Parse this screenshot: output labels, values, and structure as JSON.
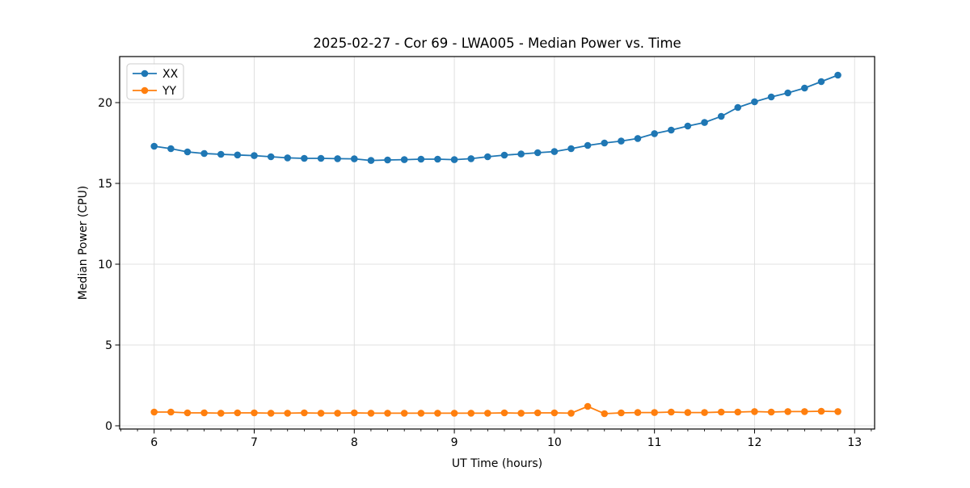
{
  "chart_data": {
    "type": "line",
    "title": "2025-02-27 - Cor 69 - LWA005 - Median Power vs. Time",
    "xlabel": "UT Time (hours)",
    "ylabel": "Median Power (CPU)",
    "xlim": [
      5.655,
      13.2
    ],
    "ylim": [
      -0.2,
      22.85
    ],
    "xticks": [
      6,
      7,
      8,
      9,
      10,
      11,
      12,
      13
    ],
    "yticks": [
      0,
      5,
      10,
      15,
      20
    ],
    "x_minor_step": 0.1666667,
    "grid": true,
    "grid_color": "#e0e0e0",
    "spine_color": "#000000",
    "background_color": "#ffffff",
    "legend": {
      "position": "upper left",
      "labels": [
        "XX",
        "YY"
      ]
    },
    "x": [
      6.0,
      6.167,
      6.333,
      6.5,
      6.667,
      6.833,
      7.0,
      7.167,
      7.333,
      7.5,
      7.667,
      7.833,
      8.0,
      8.167,
      8.333,
      8.5,
      8.667,
      8.833,
      9.0,
      9.167,
      9.333,
      9.5,
      9.667,
      9.833,
      10.0,
      10.167,
      10.333,
      10.5,
      10.667,
      10.833,
      11.0,
      11.167,
      11.333,
      11.5,
      11.667,
      11.833,
      12.0,
      12.167,
      12.333,
      12.5,
      12.667,
      12.833
    ],
    "series": [
      {
        "name": "XX",
        "color": "#1f77b4",
        "values": [
          17.3,
          17.15,
          16.95,
          16.85,
          16.8,
          16.76,
          16.72,
          16.65,
          16.58,
          16.55,
          16.55,
          16.53,
          16.52,
          16.42,
          16.45,
          16.47,
          16.5,
          16.5,
          16.47,
          16.53,
          16.65,
          16.75,
          16.82,
          16.9,
          16.97,
          17.15,
          17.35,
          17.5,
          17.62,
          17.78,
          18.08,
          18.3,
          18.55,
          18.77,
          19.15,
          19.7,
          20.05,
          20.35,
          20.6,
          20.9,
          21.3,
          21.7
        ]
      },
      {
        "name": "YY",
        "color": "#ff7f0e",
        "values": [
          0.85,
          0.85,
          0.8,
          0.8,
          0.78,
          0.8,
          0.8,
          0.78,
          0.78,
          0.8,
          0.78,
          0.78,
          0.8,
          0.78,
          0.78,
          0.78,
          0.78,
          0.78,
          0.78,
          0.78,
          0.78,
          0.8,
          0.78,
          0.8,
          0.8,
          0.78,
          1.2,
          0.75,
          0.8,
          0.82,
          0.82,
          0.85,
          0.82,
          0.82,
          0.85,
          0.85,
          0.88,
          0.85,
          0.88,
          0.88,
          0.9,
          0.88
        ]
      }
    ]
  }
}
